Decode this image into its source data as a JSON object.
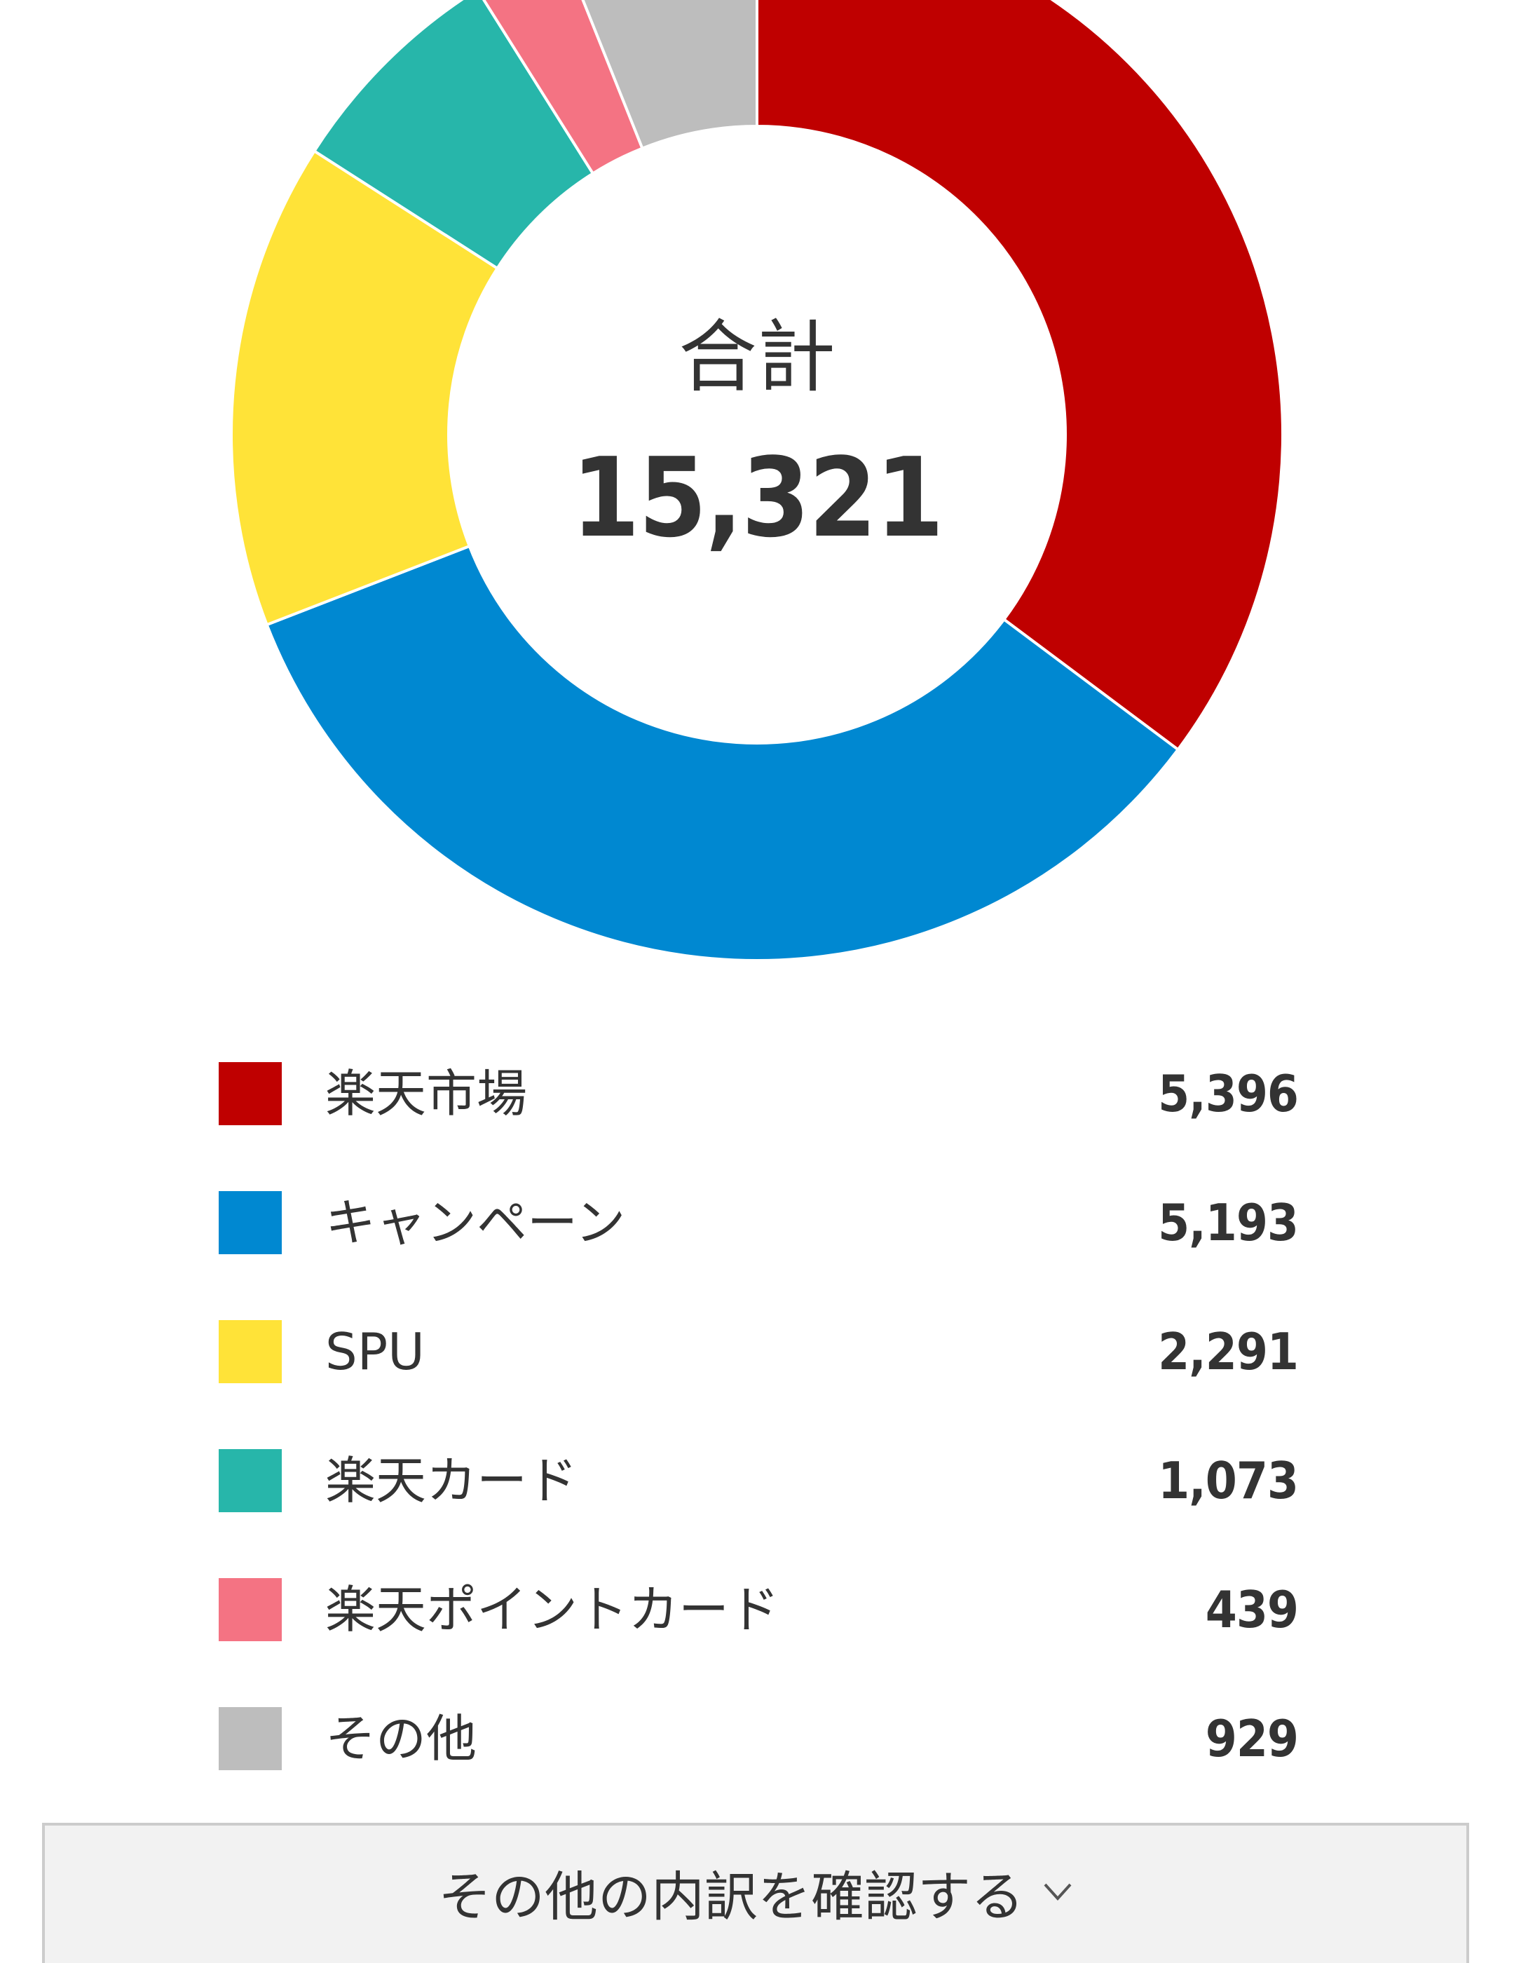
{
  "chart_data": {
    "type": "pie",
    "style": "donut",
    "center_title": "合計",
    "center_total": "15,321",
    "categories": [
      "楽天市場",
      "キャンペーン",
      "SPU",
      "楽天カード",
      "楽天ポイントカード",
      "その他"
    ],
    "values": [
      5396,
      5193,
      2291,
      1073,
      439,
      929
    ],
    "display_values": [
      "5,396",
      "5,193",
      "2,291",
      "1,073",
      "439",
      "929"
    ],
    "colors": [
      "#bf0000",
      "#0088d1",
      "#ffe338",
      "#27b6aa",
      "#f47383",
      "#bdbdbd"
    ],
    "legend_position": "bottom"
  },
  "button": {
    "label": "その他の内訳を確認する",
    "icon": "chevron-down-icon"
  }
}
